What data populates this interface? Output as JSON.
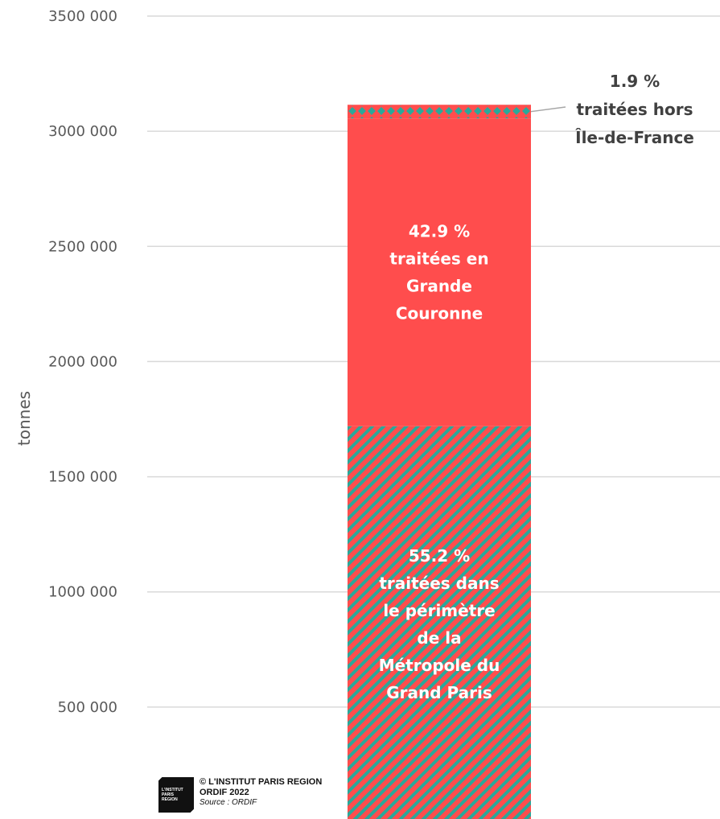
{
  "chart_data": {
    "type": "bar",
    "stacked": true,
    "ylabel": "tonnes",
    "ylim": [
      0,
      3500000
    ],
    "yticks": [
      500000,
      1000000,
      1500000,
      2000000,
      2500000,
      3000000,
      3500000
    ],
    "ytick_labels": [
      "500 000",
      "1000 000",
      "1500 000",
      "2000 000",
      "2500 000",
      "3000 000",
      "3500 000"
    ],
    "grid": true,
    "total": 3115000,
    "series": [
      {
        "key": "mgp",
        "share": 55.2,
        "label_lines": [
          "55.2 %",
          "traitées dans",
          "le périmètre",
          "de la",
          "Métropole du",
          "Grand Paris"
        ],
        "fill": "hatch",
        "colors": [
          "#ff4d4d",
          "#2aa89a"
        ]
      },
      {
        "key": "gc",
        "share": 42.9,
        "label_lines": [
          "42.9 %",
          "traitées en",
          "Grande",
          "Couronne"
        ],
        "fill": "solid",
        "colors": [
          "#ff4d4d"
        ]
      },
      {
        "key": "hors",
        "share": 1.9,
        "label_lines": [
          "1.9 %",
          "traitées hors",
          "Île-de-France"
        ],
        "fill": "dots",
        "colors": [
          "#ff4d4d",
          "#2aa89a"
        ]
      }
    ]
  },
  "credit": {
    "logo_lines": [
      "L'INSTITUT",
      "PARIS",
      "REGION"
    ],
    "line1": "© L'INSTITUT PARIS REGION",
    "line2": "ORDIF 2022",
    "line3": "Source : ORDIF"
  }
}
